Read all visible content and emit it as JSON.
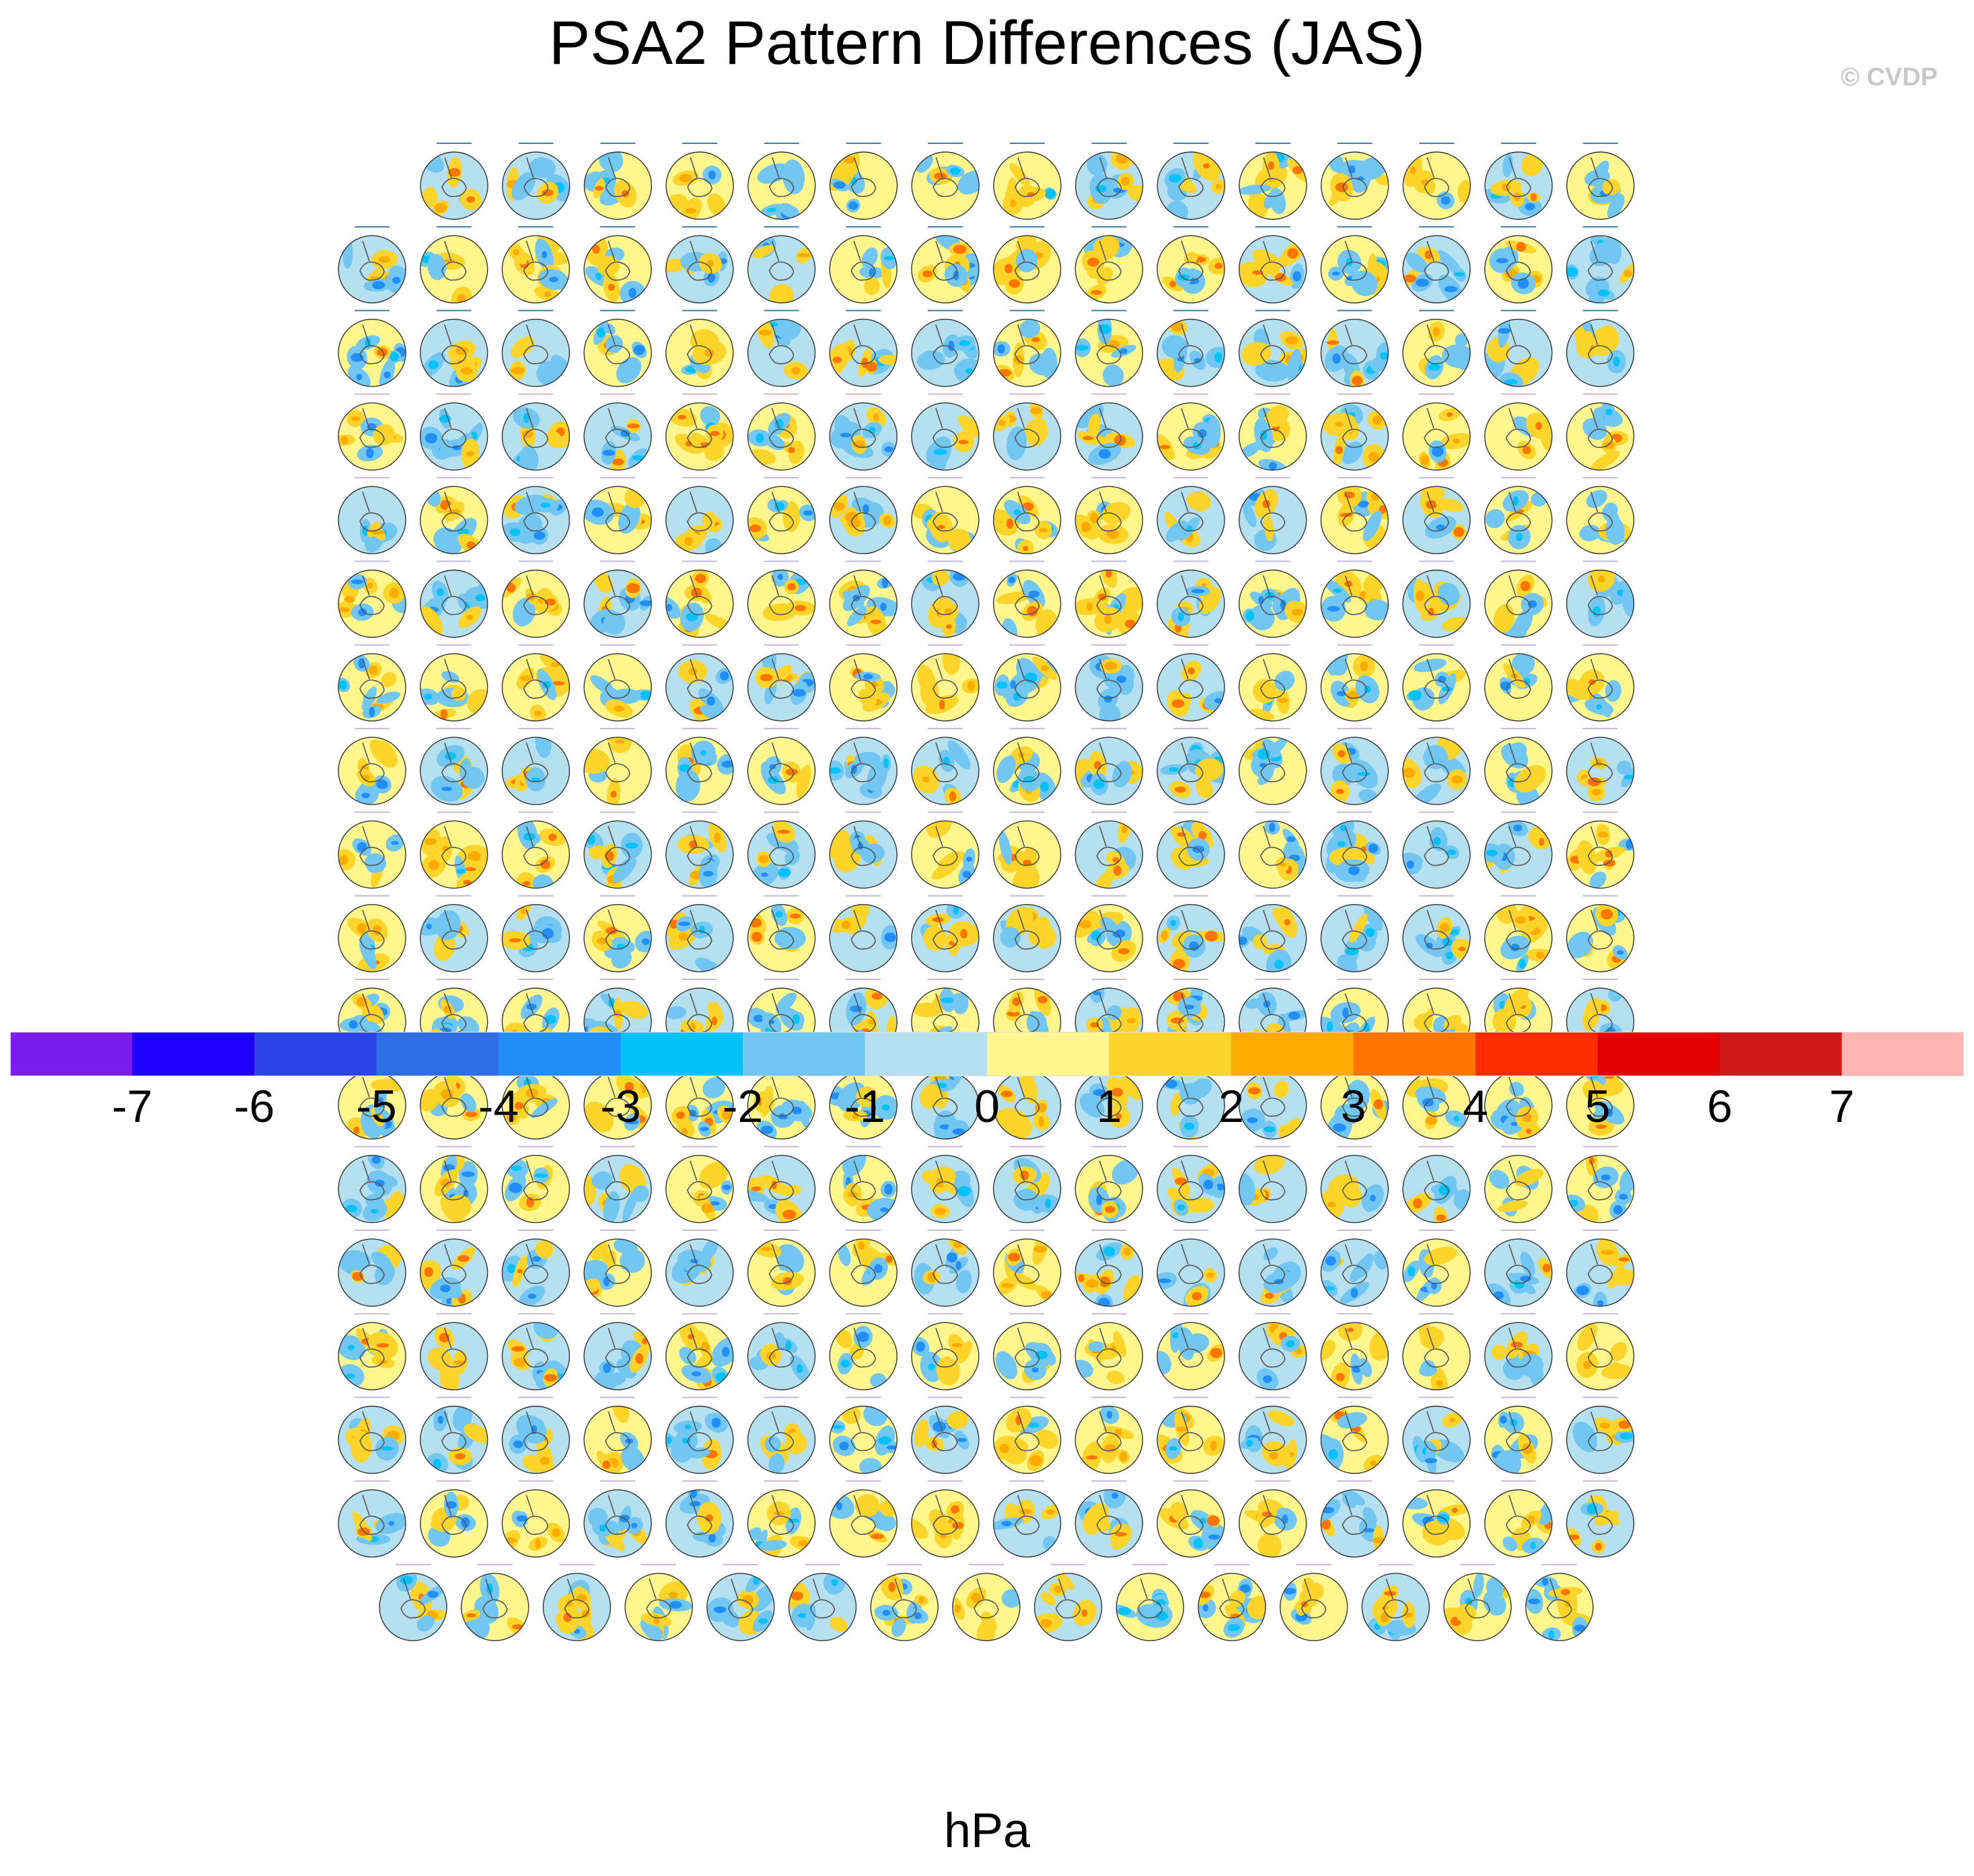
{
  "title": "PSA2 Pattern Differences (JAS)",
  "credit": "© CVDP",
  "chart_data": {
    "type": "heatmap",
    "title": "PSA2 Pattern Differences (JAS)",
    "panel_layout": {
      "rows": 18,
      "columns_per_row": [
        15,
        16,
        16,
        16,
        16,
        16,
        16,
        16,
        16,
        16,
        16,
        16,
        16,
        16,
        16,
        16,
        16,
        15
      ]
    },
    "projection": "south polar stereographic",
    "colorbar": {
      "units": "hPa",
      "tick_labels": [
        "-7",
        "-6",
        "-5",
        "-4",
        "-3",
        "-2",
        "-1",
        "0",
        "1",
        "2",
        "3",
        "4",
        "5",
        "6",
        "7"
      ],
      "colors": [
        "#7a1cec",
        "#1e00ff",
        "#2a44e5",
        "#2e6fe6",
        "#228ff9",
        "#03c2f7",
        "#72c6f2",
        "#b4e0f0",
        "#fff68e",
        "#fdd42a",
        "#fdab00",
        "#ff7500",
        "#ff2d00",
        "#e30000",
        "#cd1818",
        "#ffb4b4"
      ]
    }
  }
}
